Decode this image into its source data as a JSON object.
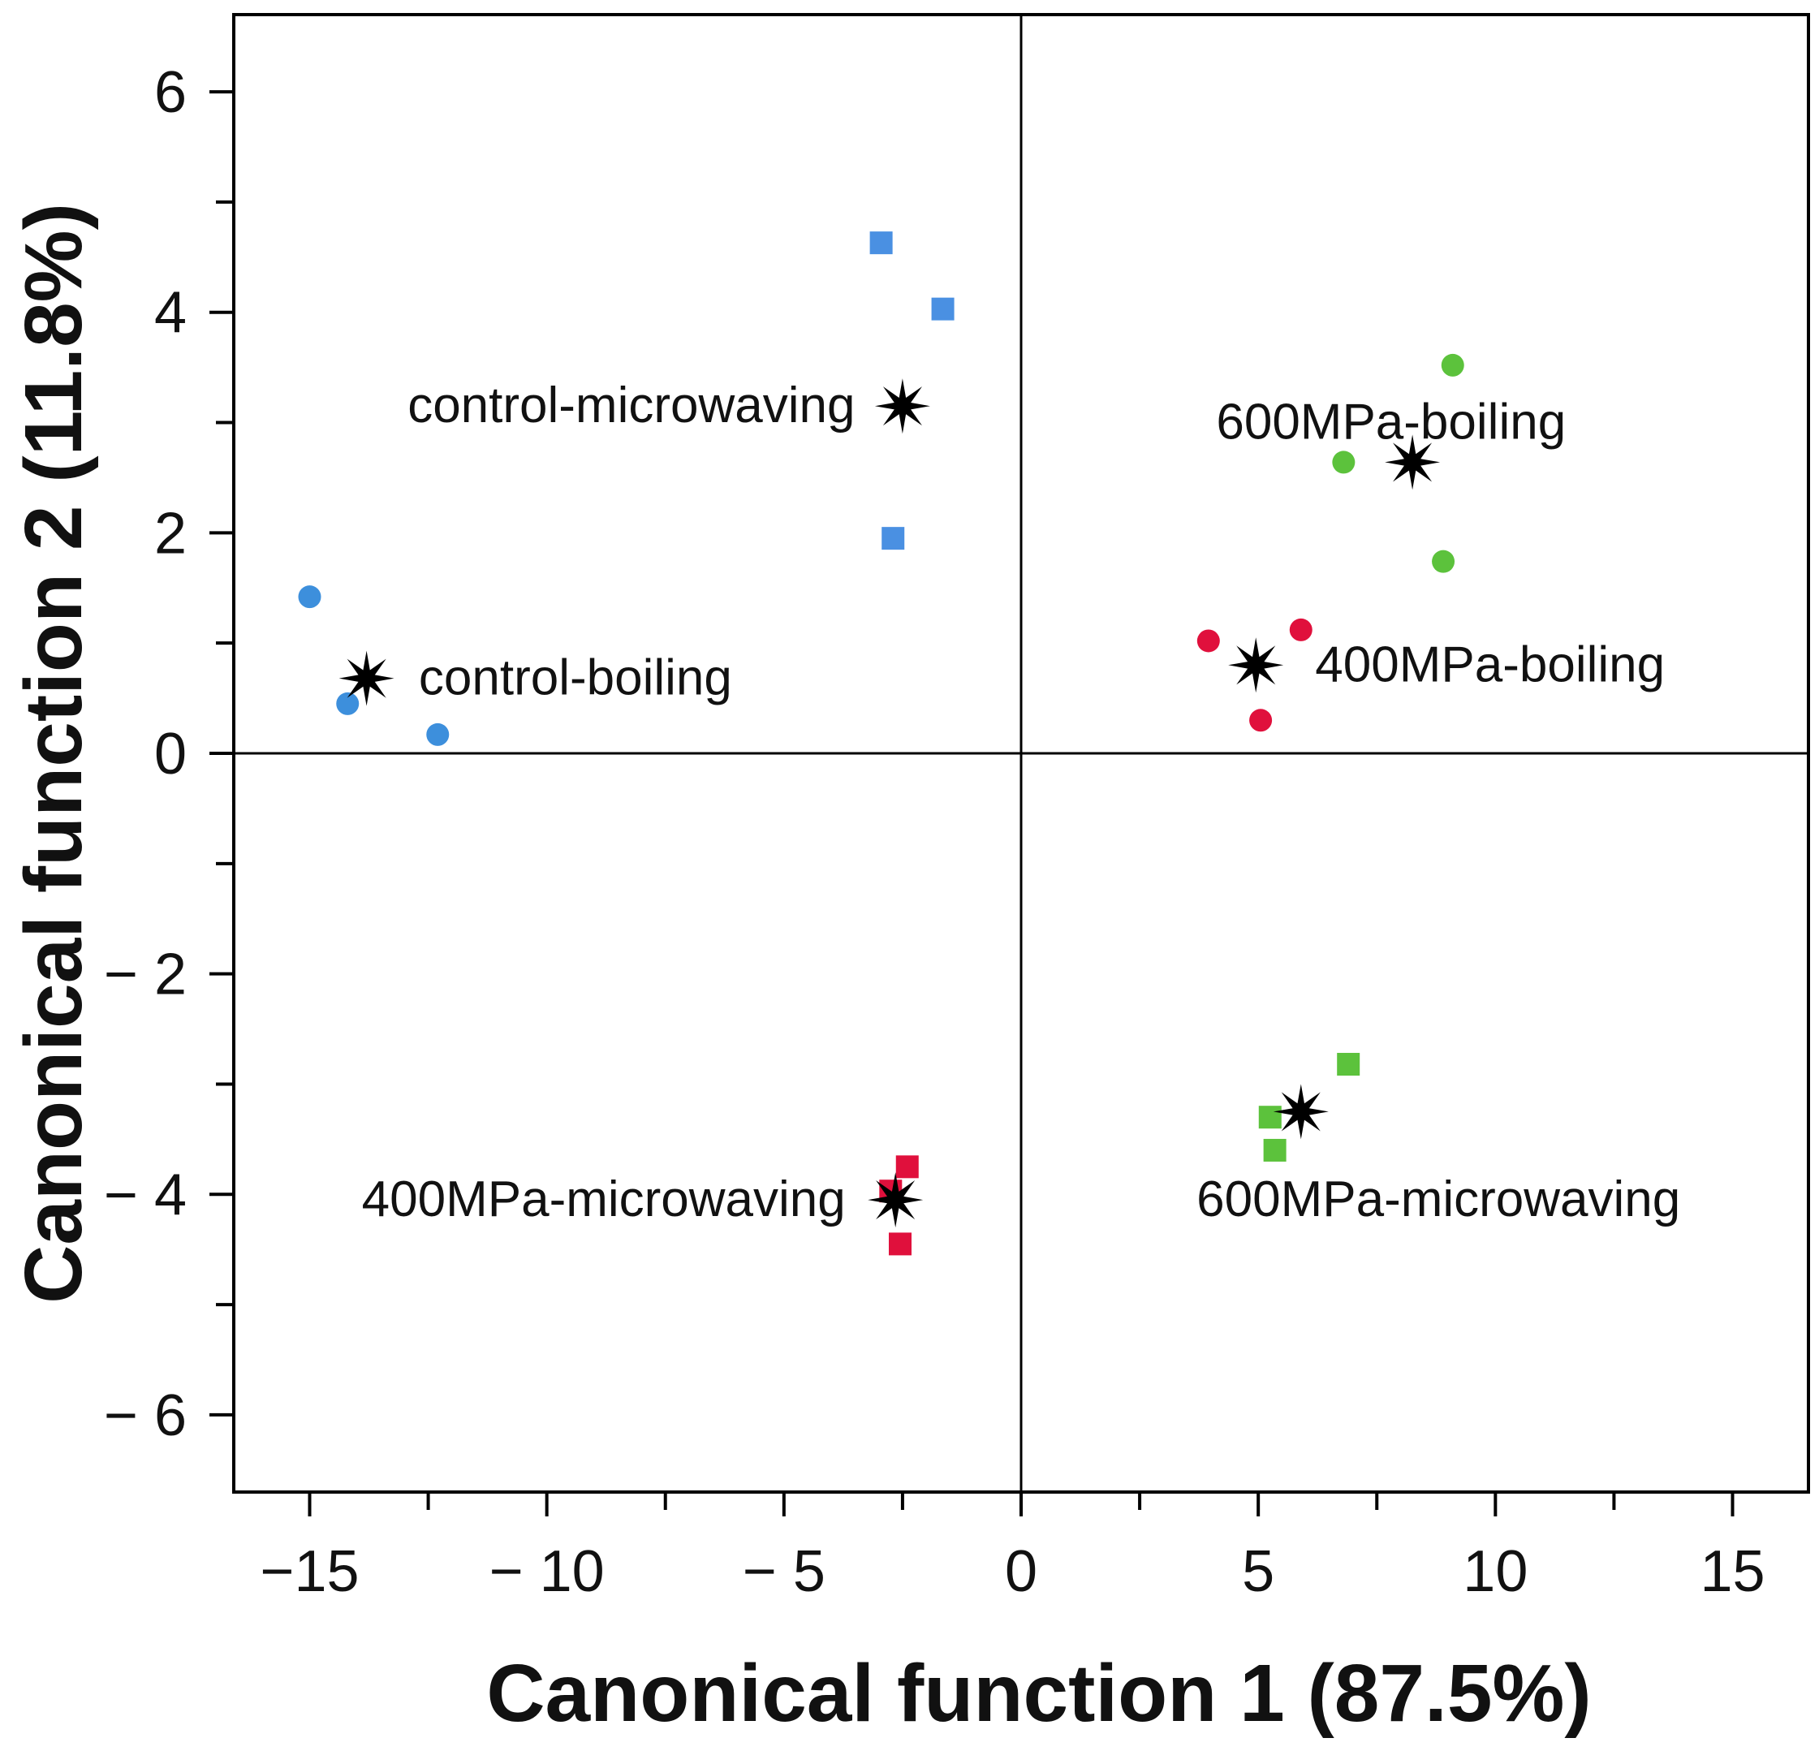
{
  "chart_data": {
    "type": "scatter",
    "title": "",
    "xlabel": "Canonical function 1 (87.5%)",
    "ylabel": "Canonical function 2 (11.8%)",
    "xlim": [
      -16.6,
      16.6
    ],
    "ylim": [
      -6.7,
      6.7
    ],
    "xticks": [
      -15,
      -10,
      -5,
      0,
      5,
      10,
      15
    ],
    "xtick_labels": [
      "−15",
      "− 10",
      "− 5",
      "0",
      "5",
      "10",
      "15"
    ],
    "xminor_ticks": [
      -12.5,
      -7.5,
      -2.5,
      2.5,
      7.5,
      12.5
    ],
    "yticks": [
      6,
      4,
      2,
      0,
      -2,
      -4,
      -6
    ],
    "ytick_labels": [
      "6",
      "4",
      "2",
      "0",
      "− 2",
      "− 4",
      "− 6"
    ],
    "yminor_ticks": [
      5,
      3,
      1,
      -1,
      -3,
      -5
    ],
    "grid": false,
    "reference_lines": {
      "x": 0,
      "y": 0
    },
    "colors": {
      "control": "#4a90e2",
      "control_boiling": "#3d8fdc",
      "p400": "#e0103c",
      "p600": "#5cc23c",
      "centroid": "#000000",
      "axis": "#000000"
    },
    "series": [
      {
        "name": "control-boiling",
        "marker": "circle",
        "color": "#3d8fdc",
        "points": [
          [
            -15.0,
            1.42
          ],
          [
            -14.2,
            0.45
          ],
          [
            -12.3,
            0.17
          ]
        ],
        "centroid": [
          -13.8,
          0.68
        ],
        "label": "control-boiling",
        "label_anchor": "start",
        "label_pos": [
          -12.7,
          0.68
        ]
      },
      {
        "name": "control-microwaving",
        "marker": "square",
        "color": "#4a90e2",
        "points": [
          [
            -2.95,
            4.63
          ],
          [
            -1.65,
            4.03
          ],
          [
            -2.7,
            1.95
          ]
        ],
        "centroid": [
          -2.5,
          3.15
        ],
        "label": "control-microwaving",
        "label_anchor": "end",
        "label_pos": [
          -3.5,
          3.15
        ]
      },
      {
        "name": "400MPa-boiling",
        "marker": "circle",
        "color": "#e0103c",
        "points": [
          [
            3.95,
            1.02
          ],
          [
            5.9,
            1.12
          ],
          [
            5.05,
            0.3
          ]
        ],
        "centroid": [
          4.95,
          0.8
        ],
        "label": "400MPa-boiling",
        "label_anchor": "start",
        "label_pos": [
          6.2,
          0.8
        ]
      },
      {
        "name": "600MPa-boiling",
        "marker": "circle",
        "color": "#5cc23c",
        "points": [
          [
            9.1,
            3.52
          ],
          [
            6.8,
            2.64
          ],
          [
            8.9,
            1.74
          ]
        ],
        "centroid": [
          8.25,
          2.64
        ],
        "label": "600MPa-boiling",
        "label_anchor": "middle",
        "label_pos": [
          7.8,
          3.0
        ]
      },
      {
        "name": "400MPa-microwaving",
        "marker": "square",
        "color": "#e0103c",
        "points": [
          [
            -2.4,
            -3.75
          ],
          [
            -2.75,
            -3.97
          ],
          [
            -2.55,
            -4.45
          ]
        ],
        "centroid": [
          -2.65,
          -4.05
        ],
        "label": "400MPa-microwaving",
        "label_anchor": "end",
        "label_pos": [
          -3.7,
          -4.05
        ]
      },
      {
        "name": "600MPa-microwaving",
        "marker": "square",
        "color": "#5cc23c",
        "points": [
          [
            6.9,
            -2.82
          ],
          [
            5.25,
            -3.3
          ],
          [
            5.35,
            -3.6
          ]
        ],
        "centroid": [
          5.9,
          -3.25
        ],
        "label": "600MPa-microwaving",
        "label_anchor": "middle",
        "label_pos": [
          8.8,
          -4.05
        ]
      }
    ]
  }
}
